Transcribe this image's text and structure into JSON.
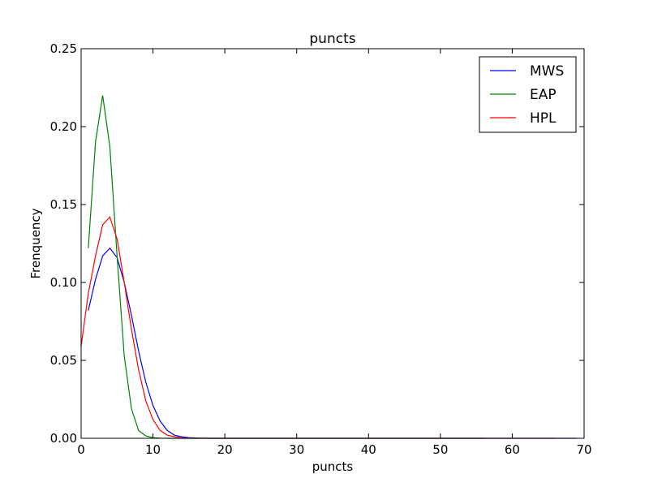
{
  "chart_data": {
    "type": "line",
    "title": "puncts",
    "xlabel": "puncts",
    "ylabel": "Frenquency",
    "xlim": [
      0,
      70
    ],
    "ylim": [
      0,
      0.25
    ],
    "xticks": [
      0,
      10,
      20,
      30,
      40,
      50,
      60,
      70
    ],
    "xtick_labels": [
      "0",
      "10",
      "20",
      "30",
      "40",
      "50",
      "60",
      "70"
    ],
    "yticks": [
      0,
      0.05,
      0.1,
      0.15,
      0.2,
      0.25
    ],
    "ytick_labels": [
      "0.00",
      "0.05",
      "0.10",
      "0.15",
      "0.20",
      "0.25"
    ],
    "grid": false,
    "legend_position": "top-right",
    "series": [
      {
        "name": "MWS",
        "color": "#0000ff",
        "x": [
          1,
          2,
          3,
          4,
          5,
          6,
          7,
          8,
          9,
          10,
          11,
          12,
          13,
          14,
          15,
          16,
          17,
          18,
          19,
          20,
          25,
          30,
          35,
          40,
          45,
          50,
          55,
          60,
          65,
          69
        ],
        "y": [
          0.082,
          0.102,
          0.117,
          0.122,
          0.116,
          0.1,
          0.079,
          0.056,
          0.036,
          0.021,
          0.011,
          0.005,
          0.002,
          0.001,
          0.0004,
          0.0002,
          0.0001,
          0,
          0,
          0,
          0,
          0,
          0,
          0,
          0,
          0,
          0,
          0,
          0,
          0
        ]
      },
      {
        "name": "EAP",
        "color": "#008000",
        "x": [
          1,
          2,
          3,
          4,
          5,
          6,
          7,
          8,
          9,
          10,
          11,
          12,
          15,
          20,
          30,
          40,
          50,
          56
        ],
        "y": [
          0.122,
          0.19,
          0.22,
          0.187,
          0.117,
          0.053,
          0.019,
          0.005,
          0.0015,
          0.0004,
          0.0001,
          0,
          0,
          0,
          0,
          0,
          0,
          0
        ]
      },
      {
        "name": "HPL",
        "color": "#ff0000",
        "x": [
          0,
          1,
          2,
          3,
          4,
          5,
          6,
          7,
          8,
          9,
          10,
          11,
          12,
          13,
          14,
          15,
          16,
          18,
          20,
          30,
          40,
          50,
          60,
          66
        ],
        "y": [
          0.059,
          0.093,
          0.117,
          0.137,
          0.142,
          0.128,
          0.1,
          0.07,
          0.044,
          0.024,
          0.012,
          0.005,
          0.002,
          0.001,
          0.0003,
          0.0001,
          0,
          0,
          0,
          0,
          0,
          0,
          0,
          0
        ]
      }
    ]
  }
}
